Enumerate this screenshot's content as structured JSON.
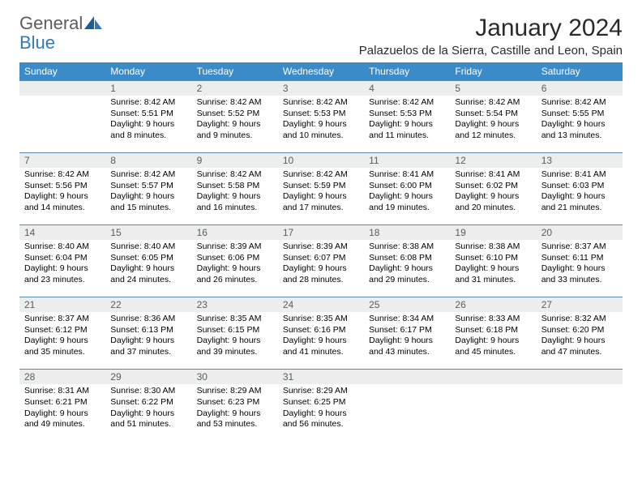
{
  "brand": {
    "general": "General",
    "blue": "Blue"
  },
  "header": {
    "month_title": "January 2024",
    "location": "Palazuelos de la Sierra, Castille and Leon, Spain"
  },
  "day_headers": [
    "Sunday",
    "Monday",
    "Tuesday",
    "Wednesday",
    "Thursday",
    "Friday",
    "Saturday"
  ],
  "colors": {
    "header_bg": "#3b8bc9",
    "header_text": "#ffffff",
    "daynum_bg": "#eceded",
    "rule": "#5a88b2"
  },
  "weeks": [
    {
      "days": [
        {
          "num": "",
          "sunrise": "",
          "sunset": "",
          "daylight": ""
        },
        {
          "num": "1",
          "sunrise": "Sunrise: 8:42 AM",
          "sunset": "Sunset: 5:51 PM",
          "daylight": "Daylight: 9 hours and 8 minutes."
        },
        {
          "num": "2",
          "sunrise": "Sunrise: 8:42 AM",
          "sunset": "Sunset: 5:52 PM",
          "daylight": "Daylight: 9 hours and 9 minutes."
        },
        {
          "num": "3",
          "sunrise": "Sunrise: 8:42 AM",
          "sunset": "Sunset: 5:53 PM",
          "daylight": "Daylight: 9 hours and 10 minutes."
        },
        {
          "num": "4",
          "sunrise": "Sunrise: 8:42 AM",
          "sunset": "Sunset: 5:53 PM",
          "daylight": "Daylight: 9 hours and 11 minutes."
        },
        {
          "num": "5",
          "sunrise": "Sunrise: 8:42 AM",
          "sunset": "Sunset: 5:54 PM",
          "daylight": "Daylight: 9 hours and 12 minutes."
        },
        {
          "num": "6",
          "sunrise": "Sunrise: 8:42 AM",
          "sunset": "Sunset: 5:55 PM",
          "daylight": "Daylight: 9 hours and 13 minutes."
        }
      ]
    },
    {
      "days": [
        {
          "num": "7",
          "sunrise": "Sunrise: 8:42 AM",
          "sunset": "Sunset: 5:56 PM",
          "daylight": "Daylight: 9 hours and 14 minutes."
        },
        {
          "num": "8",
          "sunrise": "Sunrise: 8:42 AM",
          "sunset": "Sunset: 5:57 PM",
          "daylight": "Daylight: 9 hours and 15 minutes."
        },
        {
          "num": "9",
          "sunrise": "Sunrise: 8:42 AM",
          "sunset": "Sunset: 5:58 PM",
          "daylight": "Daylight: 9 hours and 16 minutes."
        },
        {
          "num": "10",
          "sunrise": "Sunrise: 8:42 AM",
          "sunset": "Sunset: 5:59 PM",
          "daylight": "Daylight: 9 hours and 17 minutes."
        },
        {
          "num": "11",
          "sunrise": "Sunrise: 8:41 AM",
          "sunset": "Sunset: 6:00 PM",
          "daylight": "Daylight: 9 hours and 19 minutes."
        },
        {
          "num": "12",
          "sunrise": "Sunrise: 8:41 AM",
          "sunset": "Sunset: 6:02 PM",
          "daylight": "Daylight: 9 hours and 20 minutes."
        },
        {
          "num": "13",
          "sunrise": "Sunrise: 8:41 AM",
          "sunset": "Sunset: 6:03 PM",
          "daylight": "Daylight: 9 hours and 21 minutes."
        }
      ]
    },
    {
      "days": [
        {
          "num": "14",
          "sunrise": "Sunrise: 8:40 AM",
          "sunset": "Sunset: 6:04 PM",
          "daylight": "Daylight: 9 hours and 23 minutes."
        },
        {
          "num": "15",
          "sunrise": "Sunrise: 8:40 AM",
          "sunset": "Sunset: 6:05 PM",
          "daylight": "Daylight: 9 hours and 24 minutes."
        },
        {
          "num": "16",
          "sunrise": "Sunrise: 8:39 AM",
          "sunset": "Sunset: 6:06 PM",
          "daylight": "Daylight: 9 hours and 26 minutes."
        },
        {
          "num": "17",
          "sunrise": "Sunrise: 8:39 AM",
          "sunset": "Sunset: 6:07 PM",
          "daylight": "Daylight: 9 hours and 28 minutes."
        },
        {
          "num": "18",
          "sunrise": "Sunrise: 8:38 AM",
          "sunset": "Sunset: 6:08 PM",
          "daylight": "Daylight: 9 hours and 29 minutes."
        },
        {
          "num": "19",
          "sunrise": "Sunrise: 8:38 AM",
          "sunset": "Sunset: 6:10 PM",
          "daylight": "Daylight: 9 hours and 31 minutes."
        },
        {
          "num": "20",
          "sunrise": "Sunrise: 8:37 AM",
          "sunset": "Sunset: 6:11 PM",
          "daylight": "Daylight: 9 hours and 33 minutes."
        }
      ]
    },
    {
      "days": [
        {
          "num": "21",
          "sunrise": "Sunrise: 8:37 AM",
          "sunset": "Sunset: 6:12 PM",
          "daylight": "Daylight: 9 hours and 35 minutes."
        },
        {
          "num": "22",
          "sunrise": "Sunrise: 8:36 AM",
          "sunset": "Sunset: 6:13 PM",
          "daylight": "Daylight: 9 hours and 37 minutes."
        },
        {
          "num": "23",
          "sunrise": "Sunrise: 8:35 AM",
          "sunset": "Sunset: 6:15 PM",
          "daylight": "Daylight: 9 hours and 39 minutes."
        },
        {
          "num": "24",
          "sunrise": "Sunrise: 8:35 AM",
          "sunset": "Sunset: 6:16 PM",
          "daylight": "Daylight: 9 hours and 41 minutes."
        },
        {
          "num": "25",
          "sunrise": "Sunrise: 8:34 AM",
          "sunset": "Sunset: 6:17 PM",
          "daylight": "Daylight: 9 hours and 43 minutes."
        },
        {
          "num": "26",
          "sunrise": "Sunrise: 8:33 AM",
          "sunset": "Sunset: 6:18 PM",
          "daylight": "Daylight: 9 hours and 45 minutes."
        },
        {
          "num": "27",
          "sunrise": "Sunrise: 8:32 AM",
          "sunset": "Sunset: 6:20 PM",
          "daylight": "Daylight: 9 hours and 47 minutes."
        }
      ]
    },
    {
      "days": [
        {
          "num": "28",
          "sunrise": "Sunrise: 8:31 AM",
          "sunset": "Sunset: 6:21 PM",
          "daylight": "Daylight: 9 hours and 49 minutes."
        },
        {
          "num": "29",
          "sunrise": "Sunrise: 8:30 AM",
          "sunset": "Sunset: 6:22 PM",
          "daylight": "Daylight: 9 hours and 51 minutes."
        },
        {
          "num": "30",
          "sunrise": "Sunrise: 8:29 AM",
          "sunset": "Sunset: 6:23 PM",
          "daylight": "Daylight: 9 hours and 53 minutes."
        },
        {
          "num": "31",
          "sunrise": "Sunrise: 8:29 AM",
          "sunset": "Sunset: 6:25 PM",
          "daylight": "Daylight: 9 hours and 56 minutes."
        },
        {
          "num": "",
          "sunrise": "",
          "sunset": "",
          "daylight": ""
        },
        {
          "num": "",
          "sunrise": "",
          "sunset": "",
          "daylight": ""
        },
        {
          "num": "",
          "sunrise": "",
          "sunset": "",
          "daylight": ""
        }
      ]
    }
  ]
}
